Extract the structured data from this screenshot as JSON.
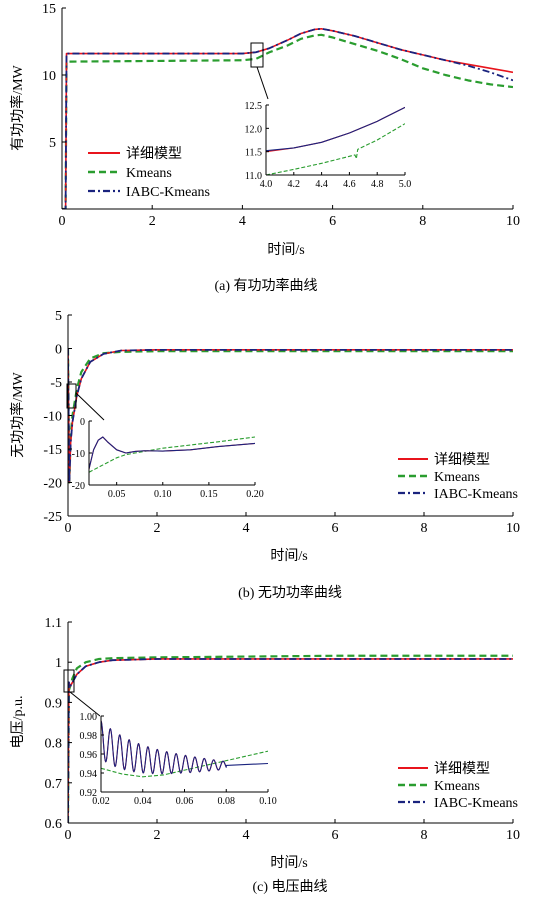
{
  "chart_data": [
    {
      "type": "line",
      "caption": "(a) 有功功率曲线",
      "xlabel": "时间/s",
      "ylabel": "有功功率/MW",
      "xlim": [
        0,
        10
      ],
      "ylim": [
        0,
        15
      ],
      "xticks": [
        0,
        2,
        4,
        6,
        8,
        10
      ],
      "yticks": [
        5,
        10,
        15
      ],
      "legend": [
        "详细模型",
        "Kmeans",
        "IABC-Kmeans"
      ],
      "legend_position": "lower-left",
      "series": [
        {
          "name": "详细模型",
          "color": "#e8141c",
          "dash": "solid",
          "x": [
            0,
            0.08,
            0.1,
            0.2,
            4.0,
            4.3,
            4.6,
            5.0,
            5.3,
            5.6,
            5.75,
            6.0,
            6.5,
            7.0,
            7.5,
            8.0,
            8.5,
            9.0,
            9.5,
            10.0
          ],
          "y": [
            0,
            0,
            11.6,
            11.6,
            11.6,
            11.7,
            12.0,
            12.6,
            13.1,
            13.4,
            13.45,
            13.3,
            12.9,
            12.4,
            11.9,
            11.5,
            11.1,
            10.8,
            10.5,
            10.2
          ]
        },
        {
          "name": "Kmeans",
          "color": "#2a9d2f",
          "dash": "dashed",
          "x": [
            0,
            0.08,
            0.1,
            0.2,
            4.0,
            4.3,
            4.6,
            5.0,
            5.3,
            5.6,
            5.75,
            6.0,
            6.5,
            7.0,
            7.5,
            8.0,
            8.5,
            9.0,
            9.5,
            10.0
          ],
          "y": [
            0,
            0,
            11.0,
            11.0,
            11.1,
            11.2,
            11.7,
            12.2,
            12.7,
            12.95,
            13.0,
            12.8,
            12.3,
            11.8,
            11.2,
            10.5,
            10.0,
            9.6,
            9.3,
            9.1
          ]
        },
        {
          "name": "IABC-Kmeans",
          "color": "#1a237e",
          "dash": "dashdot",
          "x": [
            0,
            0.08,
            0.1,
            0.2,
            4.0,
            4.3,
            4.6,
            5.0,
            5.3,
            5.6,
            5.75,
            6.0,
            6.5,
            7.0,
            7.5,
            8.0,
            8.5,
            9.0,
            9.5,
            10.0
          ],
          "y": [
            0,
            0,
            11.6,
            11.6,
            11.6,
            11.7,
            12.0,
            12.6,
            13.1,
            13.4,
            13.45,
            13.3,
            12.9,
            12.4,
            11.9,
            11.5,
            11.1,
            10.7,
            10.2,
            9.6
          ]
        }
      ],
      "inset": {
        "xlim": [
          4.0,
          5.0
        ],
        "ylim": [
          11.0,
          12.5
        ],
        "xticks": [
          4.0,
          4.2,
          4.4,
          4.6,
          4.8,
          5.0
        ],
        "yticks": [
          11.0,
          11.5,
          12.0,
          12.5
        ],
        "series": [
          {
            "name": "详细模型",
            "x": [
              4.0,
              4.2,
              4.4,
              4.6,
              4.8,
              5.0
            ],
            "y": [
              11.5,
              11.58,
              11.7,
              11.9,
              12.15,
              12.45
            ]
          },
          {
            "name": "Kmeans",
            "x": [
              4.0,
              4.2,
              4.4,
              4.6,
              4.64,
              4.65,
              4.66,
              4.8,
              5.0
            ],
            "y": [
              11.0,
              11.12,
              11.25,
              11.4,
              11.43,
              11.35,
              11.55,
              11.75,
              12.1
            ]
          },
          {
            "name": "IABC-Kmeans",
            "x": [
              4.0,
              4.2,
              4.4,
              4.6,
              4.8,
              5.0
            ],
            "y": [
              11.52,
              11.58,
              11.7,
              11.9,
              12.15,
              12.45
            ]
          }
        ]
      }
    },
    {
      "type": "line",
      "caption": "(b) 无功功率曲线",
      "xlabel": "时间/s",
      "ylabel": "无功功率/MW",
      "xlim": [
        0,
        10
      ],
      "ylim": [
        -25,
        5
      ],
      "xticks": [
        0,
        2,
        4,
        6,
        8,
        10
      ],
      "yticks": [
        -25,
        -20,
        -15,
        -10,
        -5,
        0,
        5
      ],
      "legend": [
        "详细模型",
        "Kmeans",
        "IABC-Kmeans"
      ],
      "legend_position": "lower-right",
      "series": [
        {
          "name": "详细模型",
          "color": "#e8141c",
          "dash": "solid",
          "x": [
            0,
            0.03,
            0.06,
            0.1,
            0.2,
            0.3,
            0.5,
            0.8,
            1.2,
            2,
            4,
            6,
            8,
            10
          ],
          "y": [
            0,
            -20,
            -14,
            -11,
            -7,
            -4.5,
            -2,
            -0.8,
            -0.3,
            -0.2,
            -0.2,
            -0.2,
            -0.2,
            -0.2
          ]
        },
        {
          "name": "Kmeans",
          "color": "#2a9d2f",
          "dash": "dashed",
          "x": [
            0,
            0.03,
            0.06,
            0.1,
            0.2,
            0.3,
            0.5,
            0.8,
            1.2,
            2,
            4,
            6,
            8,
            10
          ],
          "y": [
            0,
            -20,
            -13,
            -10,
            -6,
            -3.5,
            -1.5,
            -0.7,
            -0.5,
            -0.4,
            -0.4,
            -0.4,
            -0.4,
            -0.4
          ]
        },
        {
          "name": "IABC-Kmeans",
          "color": "#1a237e",
          "dash": "dashdot",
          "x": [
            0,
            0.03,
            0.06,
            0.1,
            0.2,
            0.3,
            0.5,
            0.8,
            1.2,
            2,
            4,
            6,
            8,
            10
          ],
          "y": [
            0,
            -20,
            -14,
            -11,
            -7,
            -4.5,
            -2,
            -0.8,
            -0.3,
            -0.2,
            -0.2,
            -0.2,
            -0.2,
            -0.2
          ]
        }
      ],
      "inset": {
        "xlim": [
          0.02,
          0.2
        ],
        "ylim": [
          -20,
          0
        ],
        "xticks": [
          0.05,
          0.1,
          0.15,
          0.2
        ],
        "xticklabels": [
          "0.05",
          "0.10",
          "0.15",
          "0.20"
        ],
        "yticks": [
          -20,
          -10,
          0
        ],
        "series": [
          {
            "name": "详细模型",
            "x": [
              0.02,
              0.025,
              0.03,
              0.035,
              0.04,
              0.05,
              0.06,
              0.07,
              0.08,
              0.1,
              0.13,
              0.16,
              0.2
            ],
            "y": [
              -15,
              -9,
              -6,
              -5,
              -6.5,
              -9,
              -10,
              -9.5,
              -9.3,
              -9.4,
              -9,
              -8,
              -7
            ]
          },
          {
            "name": "Kmeans",
            "x": [
              0.02,
              0.03,
              0.04,
              0.05,
              0.06,
              0.08,
              0.1,
              0.13,
              0.16,
              0.2
            ],
            "y": [
              -16,
              -14.5,
              -13,
              -11.5,
              -10.5,
              -9.5,
              -8.5,
              -7.5,
              -6.5,
              -5
            ]
          },
          {
            "name": "IABC-Kmeans",
            "x": [
              0.02,
              0.025,
              0.03,
              0.035,
              0.04,
              0.05,
              0.06,
              0.07,
              0.08,
              0.1,
              0.13,
              0.16,
              0.2
            ],
            "y": [
              -15,
              -9,
              -6,
              -5,
              -6.5,
              -9,
              -10,
              -9.5,
              -9.3,
              -9.4,
              -9,
              -8,
              -7
            ]
          }
        ]
      }
    },
    {
      "type": "line",
      "caption": "(c) 电压曲线",
      "xlabel": "时间/s",
      "ylabel": "电压/p.u.",
      "xlim": [
        0,
        10
      ],
      "ylim": [
        0.6,
        1.1
      ],
      "xticks": [
        0,
        2,
        4,
        6,
        8,
        10
      ],
      "yticks": [
        0.6,
        0.7,
        0.8,
        0.9,
        1.0,
        1.1
      ],
      "legend": [
        "详细模型",
        "Kmeans",
        "IABC-Kmeans"
      ],
      "legend_position": "lower-right",
      "series": [
        {
          "name": "详细模型",
          "color": "#e8141c",
          "dash": "solid",
          "x": [
            0,
            0.02,
            0.05,
            0.1,
            0.2,
            0.4,
            0.7,
            1.0,
            2,
            4,
            6,
            8,
            10
          ],
          "y": [
            0.6,
            0.95,
            0.94,
            0.95,
            0.97,
            0.99,
            1.0,
            1.005,
            1.008,
            1.008,
            1.008,
            1.008,
            1.008
          ]
        },
        {
          "name": "Kmeans",
          "color": "#2a9d2f",
          "dash": "dashed",
          "x": [
            0,
            0.02,
            0.05,
            0.1,
            0.2,
            0.4,
            0.7,
            1.0,
            2,
            4,
            6,
            8,
            10
          ],
          "y": [
            0.6,
            0.93,
            0.94,
            0.96,
            0.985,
            1.0,
            1.008,
            1.01,
            1.012,
            1.014,
            1.016,
            1.016,
            1.016
          ]
        },
        {
          "name": "IABC-Kmeans",
          "color": "#1a237e",
          "dash": "dashdot",
          "x": [
            0,
            0.02,
            0.05,
            0.1,
            0.2,
            0.4,
            0.7,
            1.0,
            2,
            4,
            6,
            8,
            10
          ],
          "y": [
            0.6,
            0.95,
            0.94,
            0.95,
            0.97,
            0.99,
            1.0,
            1.005,
            1.008,
            1.008,
            1.008,
            1.008,
            1.008
          ]
        }
      ],
      "inset": {
        "xlim": [
          0.02,
          0.1
        ],
        "ylim": [
          0.92,
          1.0
        ],
        "xticks": [
          0.02,
          0.04,
          0.06,
          0.08,
          0.1
        ],
        "xticklabels": [
          "0.02",
          "0.04",
          "0.06",
          "0.08",
          "0.10"
        ],
        "yticks": [
          0.92,
          0.94,
          0.96,
          0.98,
          1.0
        ],
        "yticklabels": [
          "0.92",
          "0.94",
          "0.96",
          "0.98",
          "1.00"
        ],
        "series": [
          {
            "name": "详细模型",
            "damped_oscillation": {
              "x_start": 0.02,
              "x_end": 0.08,
              "start": 0.975,
              "end": 0.948,
              "amplitude_start": 0.02,
              "amplitude_end": 0.004,
              "period": 0.0045
            }
          },
          {
            "name": "Kmeans",
            "x": [
              0.02,
              0.03,
              0.04,
              0.05,
              0.06,
              0.07,
              0.08,
              0.09,
              0.1
            ],
            "y": [
              0.945,
              0.939,
              0.936,
              0.938,
              0.943,
              0.948,
              0.953,
              0.958,
              0.963
            ]
          },
          {
            "name": "IABC-Kmeans",
            "damped_oscillation": {
              "x_start": 0.02,
              "x_end": 0.08,
              "start": 0.975,
              "end": 0.948,
              "amplitude_start": 0.02,
              "amplitude_end": 0.004,
              "period": 0.0045
            },
            "x": [
              0.08,
              0.09,
              0.1
            ],
            "y": [
              0.948,
              0.949,
              0.95
            ]
          }
        ]
      }
    }
  ]
}
